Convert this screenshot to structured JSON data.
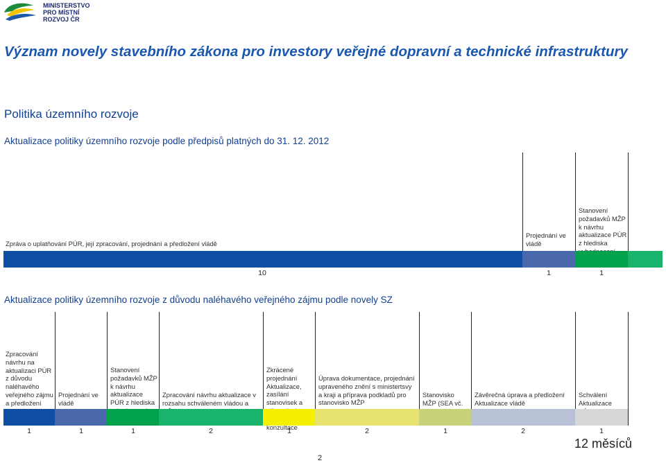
{
  "logo": {
    "text": "MINISTERSTVO\nPRO MÍSTNÍ\nROZVOJ ČR",
    "colors": [
      "#1c8b3c",
      "#f4c300",
      "#1e5aa8"
    ]
  },
  "title": "Význam novely stavebního zákona pro investory veřejné dopravní a technické infrastruktury",
  "subtitle": "Politika územního rozvoje",
  "section1": {
    "heading": "Aktualizace politiky územního rozvoje podle předpisů platných do 31. 12. 2012",
    "steps": [
      {
        "label": "Zpráva o uplatňování PÚR, její zpracování, projednání a předložení vládě",
        "color": "#0f4fa3",
        "duration": "10"
      },
      {
        "label": "Projednání ve vládě",
        "color": "#4a69ad",
        "duration": "1"
      },
      {
        "label": "Stanovení požadavků MŽP k návrhu aktualizace PÚR z hlediska vyhodnocení vlivů",
        "color": "#00a34c",
        "duration": "1"
      },
      {
        "label": "",
        "color": "#19b36b",
        "duration": ""
      }
    ]
  },
  "section2": {
    "heading": "Aktualizace politiky územního rozvoje z důvodu naléhavého veřejného zájmu podle novely SZ",
    "steps": [
      {
        "label": "Zpracování návrhu na aktualizaci PÚR z důvodu naléhavého veřejného zájmu a předložení tohoto návrhu vládě",
        "color": "#0f4fa3",
        "duration": "1"
      },
      {
        "label": "Projednání ve vládě",
        "color": "#4a69ad",
        "duration": "1"
      },
      {
        "label": "Stanovení požadavků MŽP k návrhu aktualizace PÚR z hlediska vyhodnocení vlivů",
        "color": "#00a34c",
        "duration": "1"
      },
      {
        "label": "Zpracování návrhu aktualizace v rozsahu schváleném vládou a MŽP",
        "color": "#19b36b",
        "duration": "2"
      },
      {
        "label": "Zkrácené projednání Aktualizace, zasílání stanovisek a připomínek, případně konzultace",
        "color": "#f5ef00",
        "duration": "1"
      },
      {
        "label": "Úprava dokumentace, projednání upraveného znění s ministertsvy a kraji a příprava podkladů pro stanovisko MŽP",
        "color": "#e8e26e",
        "duration": "2"
      },
      {
        "label": "Stanovisko MŽP (SEA vč. Natura)",
        "color": "#c9d27a",
        "duration": "1"
      },
      {
        "label": "Závěrečná úprava a předložení Aktualizace vládě",
        "color": "#b9c1d6",
        "duration": "2"
      },
      {
        "label": "Schválení Aktualizace PÚR vládou",
        "color": "#d7d7d7",
        "duration": "1"
      }
    ],
    "total": "12 měsíců"
  },
  "page_number": "2"
}
